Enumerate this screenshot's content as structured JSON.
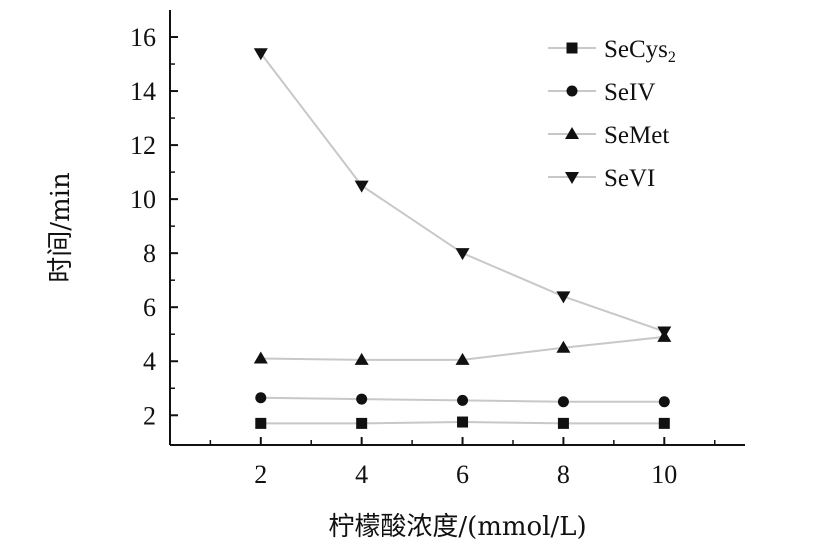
{
  "chart_data": {
    "type": "line",
    "title": "",
    "xlabel": "柠檬酸浓度/(mmol/L)",
    "ylabel": "时间/min",
    "x": [
      2,
      4,
      6,
      8,
      10
    ],
    "xticks": [
      2,
      4,
      6,
      8,
      10
    ],
    "yticks": [
      2,
      4,
      6,
      8,
      10,
      12,
      14,
      16
    ],
    "xlim": [
      0.2,
      11.6
    ],
    "ylim": [
      0.9,
      17
    ],
    "grid": false,
    "legend_position": "top-right",
    "line_color": "#c8c8c8",
    "marker_color": "#111111",
    "series": [
      {
        "name": "SeCys",
        "name_sub": "2",
        "marker": "square",
        "values": [
          1.7,
          1.7,
          1.75,
          1.7,
          1.7
        ]
      },
      {
        "name": "SeIV",
        "marker": "circle",
        "values": [
          2.65,
          2.6,
          2.55,
          2.5,
          2.5
        ]
      },
      {
        "name": "SeMet",
        "marker": "triangle-up",
        "values": [
          4.1,
          4.05,
          4.05,
          4.5,
          4.9
        ]
      },
      {
        "name": "SeVI",
        "marker": "triangle-down",
        "values": [
          15.4,
          10.5,
          8.0,
          6.4,
          5.1
        ]
      }
    ]
  }
}
